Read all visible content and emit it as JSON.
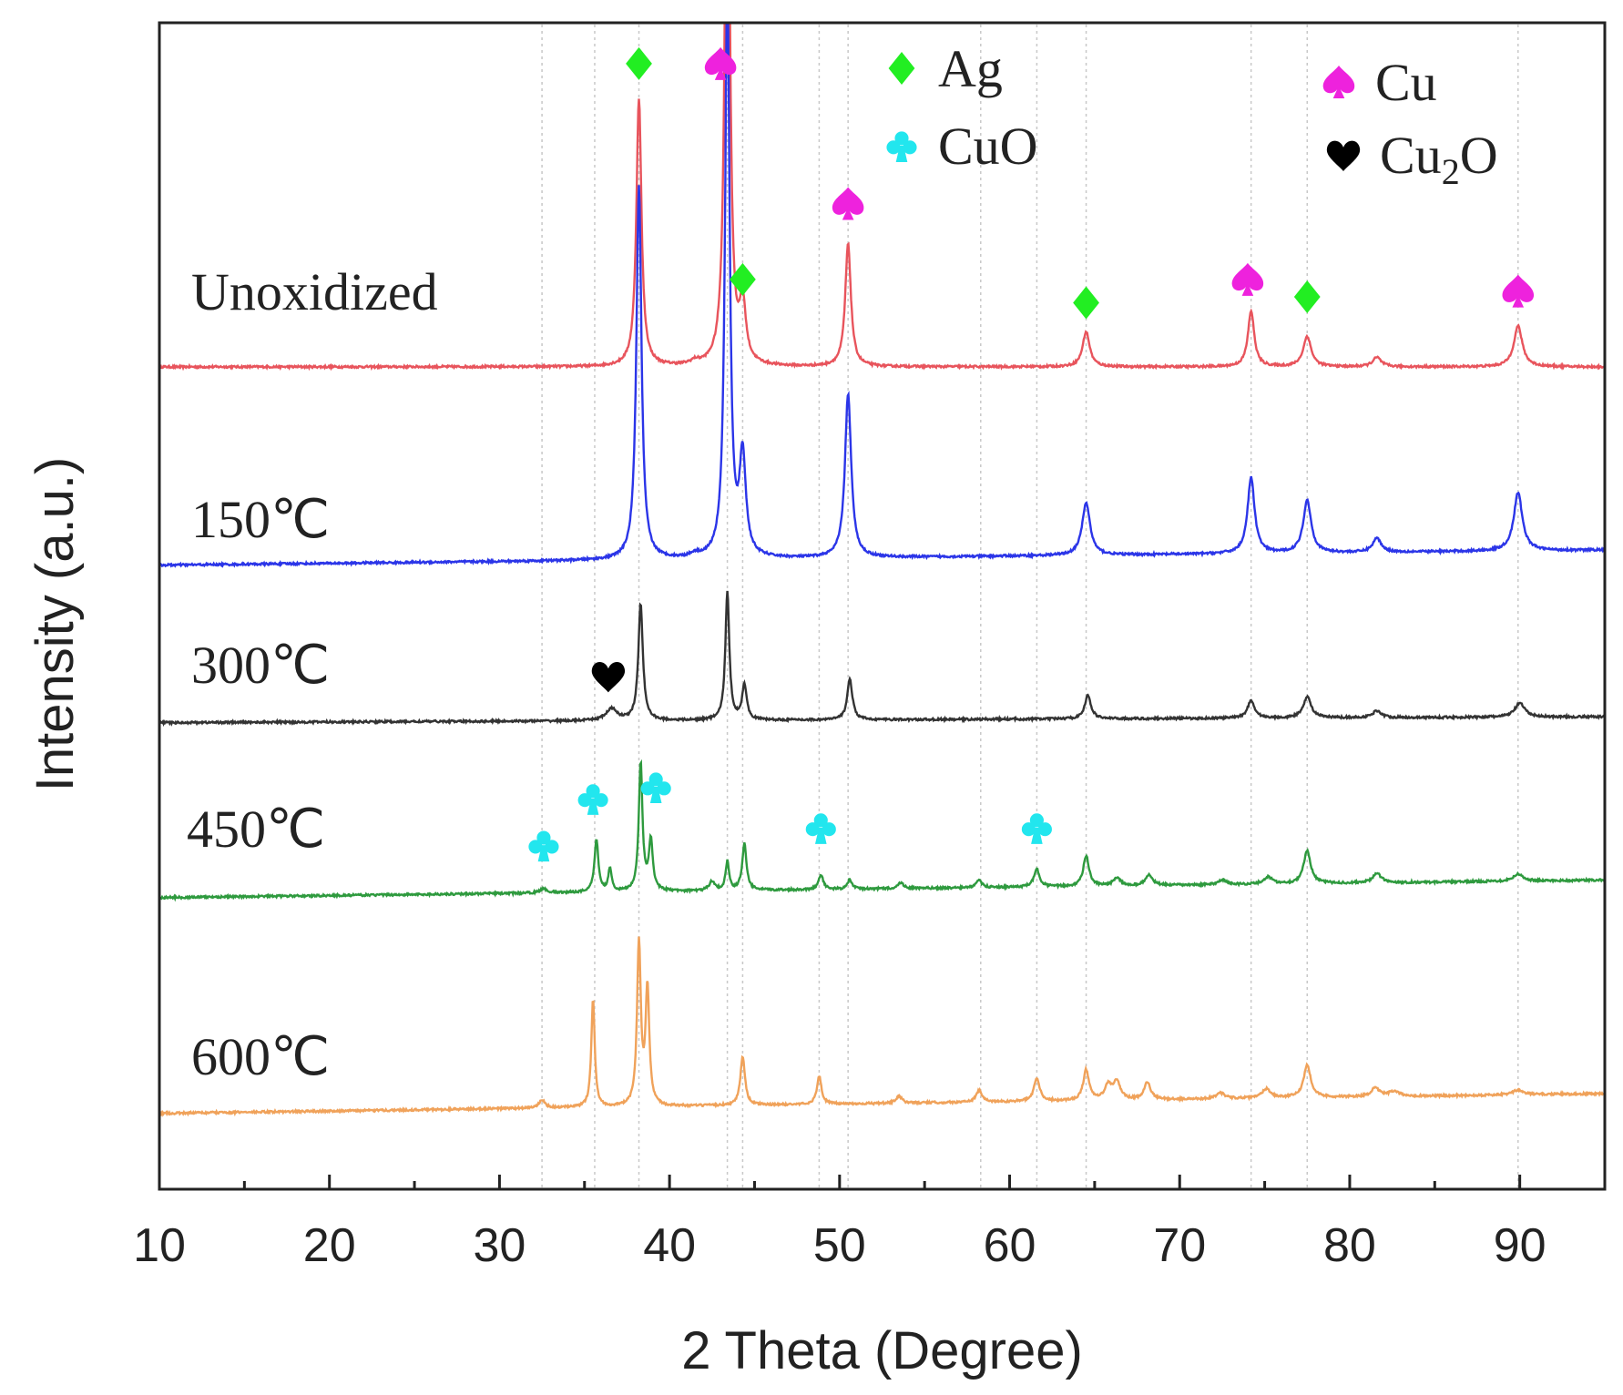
{
  "chart_data": {
    "type": "line",
    "title": "",
    "xlabel": "2 Theta (Degree)",
    "ylabel": "Intensity (a.u.)",
    "xlim": [
      10,
      95
    ],
    "xticks": [
      10,
      20,
      30,
      40,
      50,
      60,
      70,
      80,
      90
    ],
    "ylim": [
      0,
      100
    ],
    "grid": false,
    "reference_lines": [
      32.5,
      35.6,
      38.2,
      43.4,
      44.3,
      48.8,
      50.5,
      58.3,
      61.6,
      64.5,
      74.2,
      77.5,
      89.9
    ],
    "legend": {
      "placement": "top-right",
      "entries": [
        {
          "marker": "diamond",
          "label": "Ag",
          "color": "#22ee22"
        },
        {
          "marker": "spade",
          "label": "Cu",
          "color": "#ee22dd"
        },
        {
          "marker": "club",
          "label": "CuO",
          "color": "#22e6ee"
        },
        {
          "marker": "heart",
          "label": "Cu",
          "sub": "2",
          "label_tail": "O",
          "color": "#000000"
        }
      ]
    },
    "series": [
      {
        "name": "Unoxidized",
        "color": "#e8545c",
        "baseline": [
          70.5,
          70.5
        ],
        "peaks": [
          [
            38.2,
            23,
            0.18
          ],
          [
            41.5,
            0.3,
            0.3
          ],
          [
            43.4,
            58,
            0.16
          ],
          [
            44.3,
            5,
            0.22
          ],
          [
            50.5,
            10.5,
            0.2
          ],
          [
            64.5,
            3.0,
            0.25
          ],
          [
            74.2,
            4.8,
            0.22
          ],
          [
            77.5,
            2.6,
            0.28
          ],
          [
            81.6,
            0.8,
            0.3
          ],
          [
            89.9,
            3.5,
            0.3
          ]
        ]
      },
      {
        "name": "150℃",
        "color": "#2b35e8",
        "baseline": [
          53.5,
          54.8
        ],
        "peaks": [
          [
            38.2,
            32,
            0.18
          ],
          [
            41.5,
            0.3,
            0.3
          ],
          [
            43.4,
            50,
            0.16
          ],
          [
            44.3,
            8.5,
            0.22
          ],
          [
            50.5,
            14,
            0.22
          ],
          [
            64.5,
            4.5,
            0.28
          ],
          [
            74.2,
            6.5,
            0.25
          ],
          [
            77.5,
            4.5,
            0.28
          ],
          [
            81.6,
            1.2,
            0.3
          ],
          [
            89.9,
            5,
            0.3
          ]
        ]
      },
      {
        "name": "300℃",
        "color": "#333333",
        "baseline": [
          40.0,
          40.5
        ],
        "peaks": [
          [
            36.6,
            1.0,
            0.4
          ],
          [
            38.3,
            10,
            0.16
          ],
          [
            43.4,
            11,
            0.14
          ],
          [
            44.4,
            3,
            0.16
          ],
          [
            50.6,
            3.5,
            0.18
          ],
          [
            64.6,
            2.0,
            0.22
          ],
          [
            74.2,
            1.5,
            0.25
          ],
          [
            77.5,
            1.8,
            0.28
          ],
          [
            81.6,
            0.6,
            0.3
          ],
          [
            90.0,
            1.2,
            0.35
          ]
        ]
      },
      {
        "name": "450℃",
        "color": "#2e9a3e",
        "baseline": [
          25.0,
          26.5
        ],
        "peaks": [
          [
            32.6,
            0.4,
            0.2
          ],
          [
            35.7,
            4.5,
            0.14
          ],
          [
            36.5,
            2.0,
            0.12
          ],
          [
            38.3,
            11,
            0.13
          ],
          [
            38.9,
            4.3,
            0.14
          ],
          [
            42.5,
            0.8,
            0.2
          ],
          [
            43.4,
            2.5,
            0.12
          ],
          [
            44.4,
            4.0,
            0.15
          ],
          [
            48.9,
            1.3,
            0.16
          ],
          [
            50.6,
            0.8,
            0.16
          ],
          [
            53.6,
            0.5,
            0.2
          ],
          [
            58.2,
            0.6,
            0.2
          ],
          [
            61.6,
            1.5,
            0.2
          ],
          [
            64.5,
            2.6,
            0.2
          ],
          [
            66.3,
            0.7,
            0.25
          ],
          [
            68.2,
            0.9,
            0.25
          ],
          [
            72.5,
            0.4,
            0.3
          ],
          [
            75.2,
            0.6,
            0.3
          ],
          [
            77.5,
            2.8,
            0.25
          ],
          [
            81.6,
            0.8,
            0.3
          ],
          [
            89.9,
            0.6,
            0.35
          ]
        ]
      },
      {
        "name": "600℃",
        "color": "#f0a25a",
        "baseline": [
          6.5,
          8.2
        ],
        "peaks": [
          [
            32.5,
            0.7,
            0.2
          ],
          [
            35.5,
            9.3,
            0.12
          ],
          [
            38.2,
            14,
            0.13
          ],
          [
            38.7,
            10,
            0.13
          ],
          [
            44.3,
            4.2,
            0.16
          ],
          [
            48.8,
            2.4,
            0.16
          ],
          [
            53.5,
            0.6,
            0.2
          ],
          [
            58.2,
            1.0,
            0.2
          ],
          [
            61.6,
            2.0,
            0.2
          ],
          [
            64.5,
            2.6,
            0.2
          ],
          [
            65.8,
            1.2,
            0.25
          ],
          [
            66.3,
            1.5,
            0.25
          ],
          [
            68.1,
            1.5,
            0.22
          ],
          [
            72.4,
            0.5,
            0.3
          ],
          [
            75.1,
            0.8,
            0.3
          ],
          [
            77.5,
            2.8,
            0.25
          ],
          [
            81.5,
            0.7,
            0.3
          ],
          [
            82.6,
            0.4,
            0.4
          ],
          [
            89.9,
            0.4,
            0.35
          ]
        ]
      }
    ],
    "annotations": [
      {
        "marker": "diamond",
        "color": "#22ee22",
        "x": 38.2,
        "y": 96.5
      },
      {
        "marker": "spade",
        "color": "#ee22dd",
        "x": 43.0,
        "y": 96.5
      },
      {
        "marker": "spade",
        "color": "#ee22dd",
        "x": 50.5,
        "y": 84.5
      },
      {
        "marker": "diamond",
        "color": "#22ee22",
        "x": 44.3,
        "y": 78
      },
      {
        "marker": "diamond",
        "color": "#22ee22",
        "x": 64.5,
        "y": 76
      },
      {
        "marker": "spade",
        "color": "#ee22dd",
        "x": 74.0,
        "y": 78
      },
      {
        "marker": "diamond",
        "color": "#22ee22",
        "x": 77.5,
        "y": 76.5
      },
      {
        "marker": "spade",
        "color": "#ee22dd",
        "x": 89.9,
        "y": 77
      },
      {
        "marker": "heart",
        "color": "#000000",
        "x": 36.4,
        "y": 44
      },
      {
        "marker": "club",
        "color": "#22e6ee",
        "x": 32.6,
        "y": 29.5
      },
      {
        "marker": "club",
        "color": "#22e6ee",
        "x": 35.5,
        "y": 33.5
      },
      {
        "marker": "club",
        "color": "#22e6ee",
        "x": 39.2,
        "y": 34.5
      },
      {
        "marker": "club",
        "color": "#22e6ee",
        "x": 48.9,
        "y": 31
      },
      {
        "marker": "club",
        "color": "#22e6ee",
        "x": 61.6,
        "y": 31
      }
    ]
  }
}
